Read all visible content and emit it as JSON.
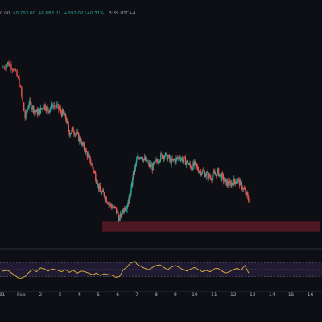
{
  "header": {
    "open": "3:39 UTC+4",
    "prefix": "0.00",
    "o": "$0,203.00",
    "c": "$0,888.01",
    "change": "+392.02 (+0.31%)",
    "suffix": ""
  },
  "colors": {
    "background": "#0d0f14",
    "up": "#26a69a",
    "down": "#ef5350",
    "zone": "#5b1a26",
    "rsi_line": "#e0b33a",
    "rsi_band": "#2a2040",
    "divider": "#2a2e39"
  },
  "chart_data": [
    {
      "type": "candlestick",
      "title": "",
      "x_ticks": [
        "31",
        "Feb",
        "2",
        "3",
        "4",
        "5",
        "6",
        "7",
        "8",
        "9",
        "10",
        "11",
        "12",
        "13",
        "14",
        "15",
        "16"
      ],
      "path": [
        [
          0.0,
          0.62
        ],
        [
          0.3,
          0.64
        ],
        [
          0.6,
          0.62
        ],
        [
          0.9,
          0.56
        ],
        [
          1.2,
          0.42
        ],
        [
          1.4,
          0.48
        ],
        [
          1.6,
          0.46
        ],
        [
          1.8,
          0.44
        ],
        [
          2.0,
          0.45
        ],
        [
          2.2,
          0.47
        ],
        [
          2.4,
          0.45
        ],
        [
          2.6,
          0.47
        ],
        [
          2.9,
          0.46
        ],
        [
          3.1,
          0.44
        ],
        [
          3.3,
          0.42
        ],
        [
          3.5,
          0.36
        ],
        [
          3.7,
          0.37
        ],
        [
          3.9,
          0.35
        ],
        [
          4.1,
          0.32
        ],
        [
          4.3,
          0.29
        ],
        [
          4.5,
          0.26
        ],
        [
          4.7,
          0.22
        ],
        [
          4.9,
          0.17
        ],
        [
          5.1,
          0.12
        ],
        [
          5.3,
          0.11
        ],
        [
          5.5,
          0.08
        ],
        [
          5.7,
          0.06
        ],
        [
          5.9,
          0.05
        ],
        [
          6.1,
          0.01
        ],
        [
          6.3,
          0.05
        ],
        [
          6.5,
          0.07
        ],
        [
          6.6,
          0.09
        ],
        [
          6.7,
          0.13
        ],
        [
          6.8,
          0.18
        ],
        [
          6.9,
          0.21
        ],
        [
          7.0,
          0.25
        ],
        [
          7.2,
          0.27
        ],
        [
          7.4,
          0.25
        ],
        [
          7.6,
          0.23
        ],
        [
          7.8,
          0.22
        ],
        [
          8.0,
          0.24
        ],
        [
          8.2,
          0.26
        ],
        [
          8.4,
          0.27
        ],
        [
          8.6,
          0.26
        ],
        [
          8.8,
          0.24
        ],
        [
          9.0,
          0.25
        ],
        [
          9.2,
          0.26
        ],
        [
          9.4,
          0.25
        ],
        [
          9.6,
          0.24
        ],
        [
          9.8,
          0.22
        ],
        [
          10.0,
          0.23
        ],
        [
          10.2,
          0.21
        ],
        [
          10.4,
          0.2
        ],
        [
          10.6,
          0.19
        ],
        [
          10.8,
          0.18
        ],
        [
          11.0,
          0.19
        ],
        [
          11.2,
          0.2
        ],
        [
          11.4,
          0.18
        ],
        [
          11.6,
          0.16
        ],
        [
          11.8,
          0.15
        ],
        [
          12.0,
          0.16
        ],
        [
          12.2,
          0.17
        ],
        [
          12.4,
          0.15
        ],
        [
          12.6,
          0.12
        ],
        [
          12.8,
          0.09
        ]
      ],
      "zone": {
        "x_start": 5.2,
        "x_end": 16.5,
        "low": -0.04,
        "high": 0.0
      },
      "y_range": [
        -0.08,
        0.7
      ],
      "x_range": [
        -0.1,
        16.6
      ]
    },
    {
      "type": "line",
      "name": "",
      "band": [
        30,
        70
      ],
      "y_range": [
        10,
        90
      ],
      "points": [
        [
          0.0,
          45
        ],
        [
          0.3,
          48
        ],
        [
          0.6,
          36
        ],
        [
          0.9,
          24
        ],
        [
          1.2,
          30
        ],
        [
          1.4,
          42
        ],
        [
          1.6,
          50
        ],
        [
          1.8,
          44
        ],
        [
          2.0,
          55
        ],
        [
          2.2,
          52
        ],
        [
          2.4,
          46
        ],
        [
          2.6,
          52
        ],
        [
          2.9,
          48
        ],
        [
          3.1,
          44
        ],
        [
          3.3,
          50
        ],
        [
          3.5,
          42
        ],
        [
          3.7,
          48
        ],
        [
          3.9,
          40
        ],
        [
          4.1,
          46
        ],
        [
          4.3,
          44
        ],
        [
          4.5,
          40
        ],
        [
          4.7,
          35
        ],
        [
          4.9,
          40
        ],
        [
          5.1,
          33
        ],
        [
          5.3,
          38
        ],
        [
          5.5,
          36
        ],
        [
          5.7,
          34
        ],
        [
          5.9,
          28
        ],
        [
          6.1,
          30
        ],
        [
          6.3,
          50
        ],
        [
          6.5,
          58
        ],
        [
          6.6,
          65
        ],
        [
          6.7,
          70
        ],
        [
          6.8,
          72
        ],
        [
          6.9,
          74
        ],
        [
          7.0,
          66
        ],
        [
          7.2,
          60
        ],
        [
          7.4,
          54
        ],
        [
          7.6,
          50
        ],
        [
          7.8,
          56
        ],
        [
          8.0,
          62
        ],
        [
          8.2,
          64
        ],
        [
          8.4,
          56
        ],
        [
          8.6,
          50
        ],
        [
          8.8,
          58
        ],
        [
          9.0,
          62
        ],
        [
          9.2,
          56
        ],
        [
          9.4,
          50
        ],
        [
          9.6,
          46
        ],
        [
          9.8,
          52
        ],
        [
          10.0,
          56
        ],
        [
          10.2,
          50
        ],
        [
          10.4,
          44
        ],
        [
          10.6,
          48
        ],
        [
          10.8,
          44
        ],
        [
          11.0,
          52
        ],
        [
          11.2,
          54
        ],
        [
          11.4,
          46
        ],
        [
          11.6,
          40
        ],
        [
          11.8,
          44
        ],
        [
          12.0,
          50
        ],
        [
          12.2,
          54
        ],
        [
          12.4,
          48
        ],
        [
          12.6,
          62
        ],
        [
          12.8,
          40
        ]
      ]
    }
  ]
}
